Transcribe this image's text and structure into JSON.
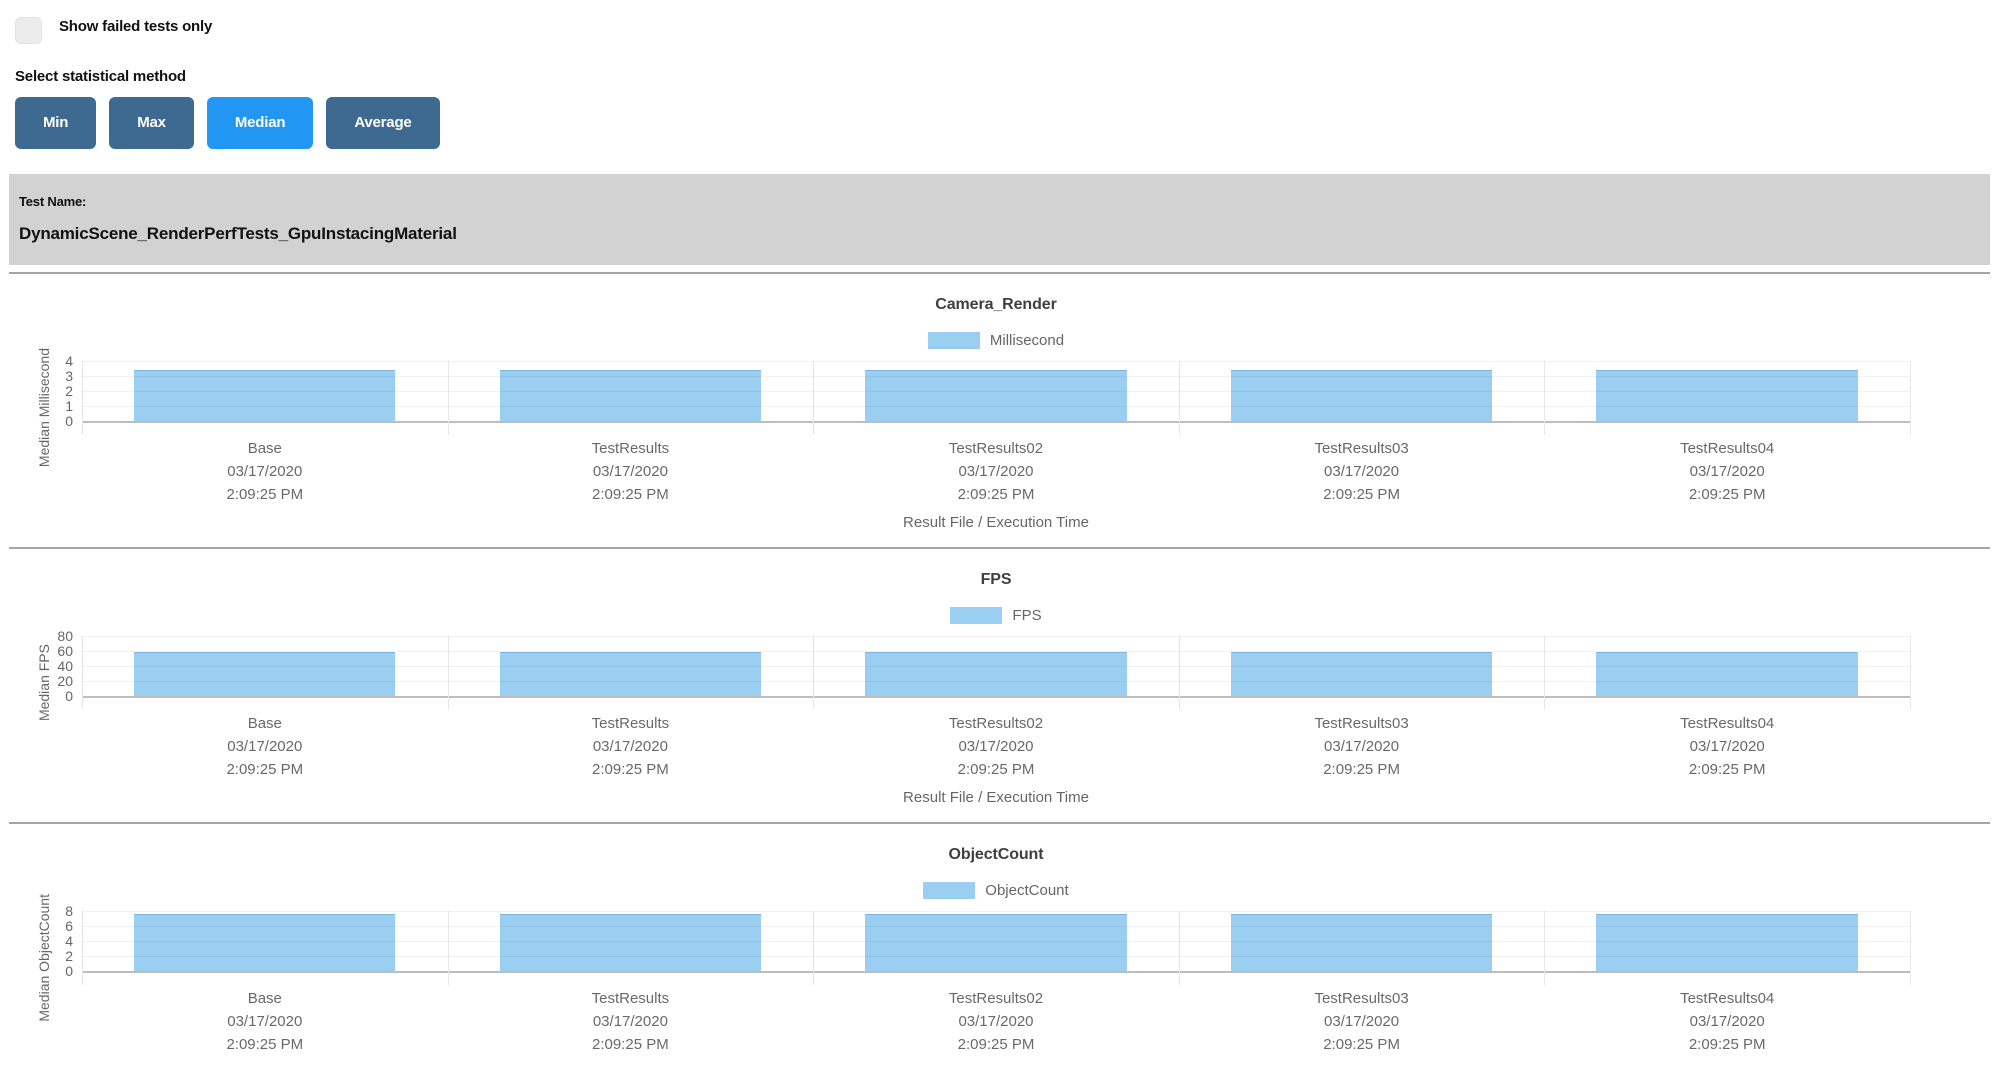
{
  "controls": {
    "show_failed_checkbox": {
      "label": "Show failed tests only",
      "checked": false
    },
    "stat_method_label": "Select statistical method",
    "stat_buttons": [
      {
        "label": "Min",
        "active": false
      },
      {
        "label": "Max",
        "active": false
      },
      {
        "label": "Median",
        "active": true
      },
      {
        "label": "Average",
        "active": false
      }
    ]
  },
  "test_header": {
    "label": "Test Name:",
    "value": "DynamicScene_RenderPerfTests_GpuInstacingMaterial"
  },
  "ui_colors": {
    "active_button": "#2196f3",
    "inactive_button": "#3e6a92",
    "bar_fill": "#9bcff2",
    "header_bg": "#d2d2d2"
  },
  "chart_data": [
    {
      "type": "bar",
      "title": "Camera_Render",
      "legend": [
        {
          "label": "Millisecond",
          "color": "#9bcff2"
        }
      ],
      "legend_position": "top-center",
      "grid": true,
      "ylabel": "Median Millisecond",
      "xlabel": "Result File / Execution Time",
      "ylim": [
        0,
        4
      ],
      "yticks": [
        0,
        1,
        2,
        3,
        4
      ],
      "categories": [
        "Base",
        "TestResults",
        "TestResults02",
        "TestResults03",
        "TestResults04"
      ],
      "category_dates": [
        "03/17/2020",
        "03/17/2020",
        "03/17/2020",
        "03/17/2020",
        "03/17/2020"
      ],
      "category_times": [
        "2:09:25 PM",
        "2:09:25 PM",
        "2:09:25 PM",
        "2:09:25 PM",
        "2:09:25 PM"
      ],
      "values": [
        3.4,
        3.4,
        3.4,
        3.4,
        3.4
      ]
    },
    {
      "type": "bar",
      "title": "FPS",
      "legend": [
        {
          "label": "FPS",
          "color": "#9bcff2"
        }
      ],
      "legend_position": "top-center",
      "grid": true,
      "ylabel": "Median FPS",
      "xlabel": "Result File / Execution Time",
      "ylim": [
        0,
        80
      ],
      "yticks": [
        0,
        20,
        40,
        60,
        80
      ],
      "categories": [
        "Base",
        "TestResults",
        "TestResults02",
        "TestResults03",
        "TestResults04"
      ],
      "category_dates": [
        "03/17/2020",
        "03/17/2020",
        "03/17/2020",
        "03/17/2020",
        "03/17/2020"
      ],
      "category_times": [
        "2:09:25 PM",
        "2:09:25 PM",
        "2:09:25 PM",
        "2:09:25 PM",
        "2:09:25 PM"
      ],
      "values": [
        59,
        59,
        59,
        59,
        59
      ]
    },
    {
      "type": "bar",
      "title": "ObjectCount",
      "legend": [
        {
          "label": "ObjectCount",
          "color": "#9bcff2"
        }
      ],
      "legend_position": "top-center",
      "grid": true,
      "ylabel": "Median ObjectCount",
      "xlabel": "",
      "ylim": [
        0,
        8
      ],
      "yticks": [
        0,
        2,
        4,
        6,
        8
      ],
      "categories": [
        "Base",
        "TestResults",
        "TestResults02",
        "TestResults03",
        "TestResults04"
      ],
      "category_dates": [
        "03/17/2020",
        "03/17/2020",
        "03/17/2020",
        "03/17/2020",
        "03/17/2020"
      ],
      "category_times": [
        "2:09:25 PM",
        "2:09:25 PM",
        "2:09:25 PM",
        "2:09:25 PM",
        "2:09:25 PM"
      ],
      "values": [
        7.6,
        7.6,
        7.6,
        7.6,
        7.6
      ]
    }
  ]
}
